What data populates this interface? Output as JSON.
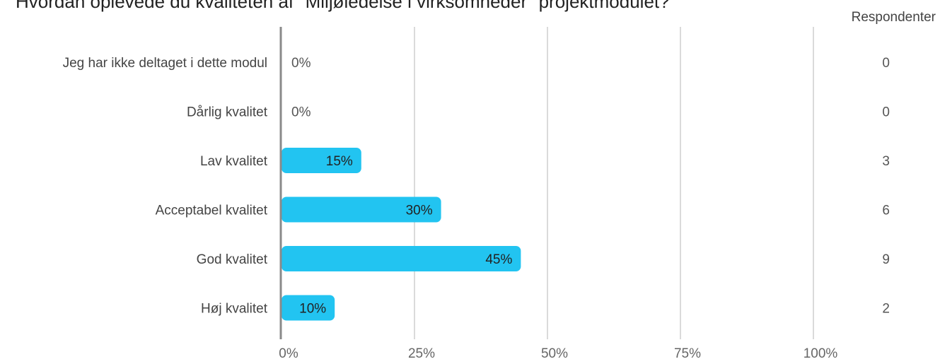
{
  "chart_data": {
    "type": "bar",
    "orientation": "horizontal",
    "title": "Hvordan oplevede du kvaliteten af \"Miljøledelse i virksomheder\" projektmodulet?",
    "categories": [
      "Jeg har ikke deltaget i dette modul",
      "Dårlig kvalitet",
      "Lav kvalitet",
      "Acceptabel kvalitet",
      "God kvalitet",
      "Høj kvalitet"
    ],
    "values": [
      0,
      0,
      15,
      30,
      45,
      10
    ],
    "value_labels": [
      "0%",
      "0%",
      "15%",
      "30%",
      "45%",
      "10%"
    ],
    "respondents_header": "Respondenter",
    "respondents": [
      0,
      0,
      3,
      6,
      9,
      2
    ],
    "xlim": [
      0,
      100
    ],
    "xticks": [
      "0%",
      "25%",
      "50%",
      "75%",
      "100%"
    ],
    "grid": true,
    "bar_color": "#22c4f1"
  }
}
